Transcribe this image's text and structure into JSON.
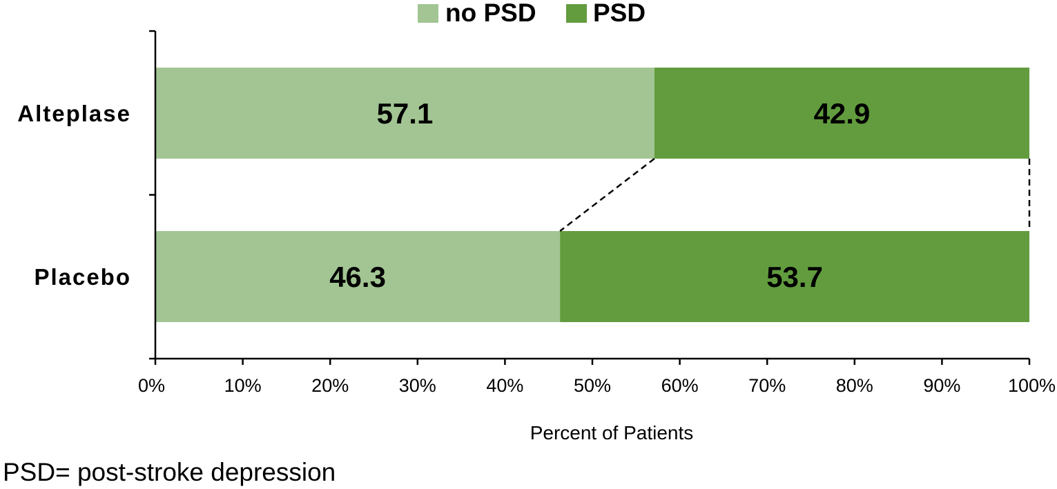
{
  "chart_data": {
    "type": "bar",
    "orientation": "horizontal",
    "stacked": "percent",
    "categories": [
      "Alteplase",
      "Placebo"
    ],
    "series": [
      {
        "name": "no PSD",
        "values": [
          57.1,
          46.3
        ],
        "color": "#a2c593"
      },
      {
        "name": "PSD",
        "values": [
          42.9,
          53.7
        ],
        "color": "#629c3e"
      }
    ],
    "xlabel": "Percent of Patients",
    "ylabel": "",
    "xlim": [
      0,
      100
    ],
    "x_ticks": [
      "0%",
      "10%",
      "20%",
      "30%",
      "40%",
      "50%",
      "60%",
      "70%",
      "80%",
      "90%",
      "100%"
    ],
    "legend": "top-center",
    "grid": false,
    "series_lines": "dashed",
    "footnote": "PSD= post-stroke depression"
  }
}
